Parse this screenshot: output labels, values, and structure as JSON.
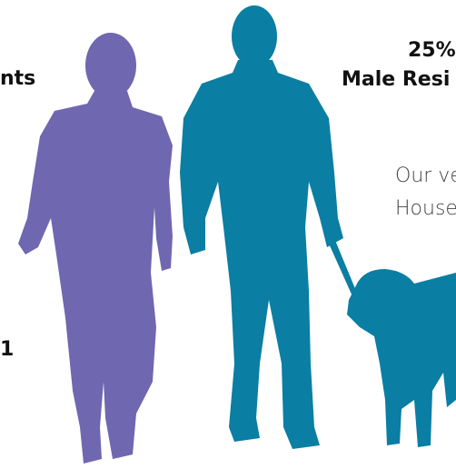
{
  "left_column": {
    "heading": "nts",
    "value": "1"
  },
  "right_column": {
    "percent": "25%",
    "heading": "Male Resi",
    "text_lines": [
      "Our ve",
      "House"
    ]
  }
}
